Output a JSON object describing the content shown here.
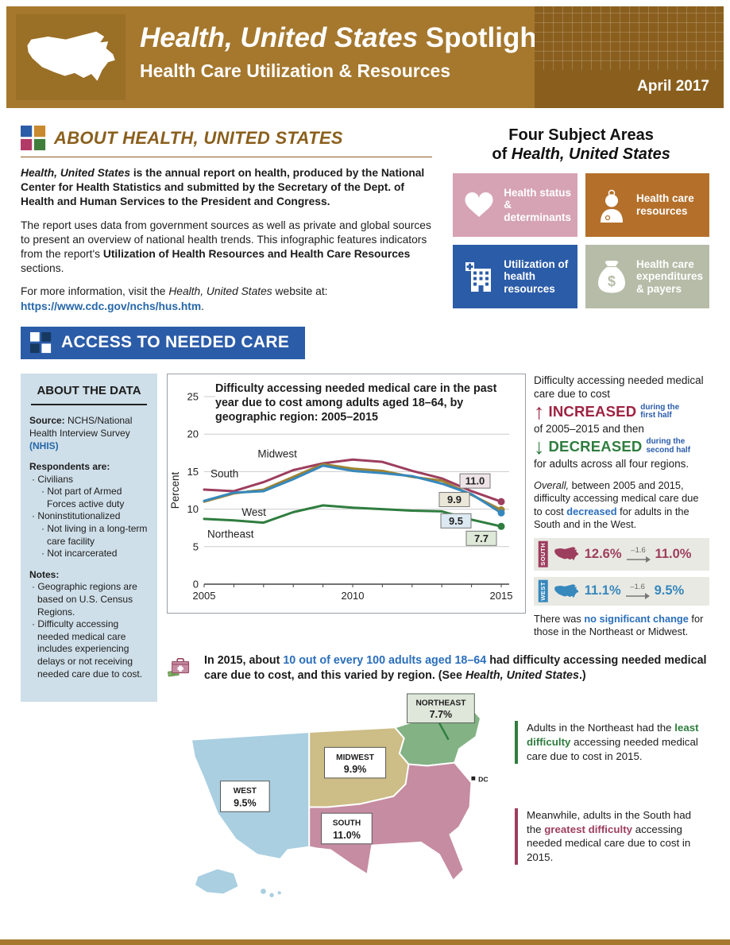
{
  "header": {
    "title_italic": "Health, United States",
    "title_suffix": " Spotlight",
    "subtitle": "Health Care Utilization & Resources",
    "date": "April 2017"
  },
  "about": {
    "heading_word": "ABOUT ",
    "heading_title": "HEALTH, UNITED STATES",
    "p1_italic": "Health, United States",
    "p1_rest": " is the annual report on health, produced by the National Center for Health Statistics and submitted by the Secretary of the Dept. of Health and Human Services to the President and Congress.",
    "p2_a": "The report uses data from government sources as well as private and global sources to present an overview of national health trends. This infographic features indicators from the report's ",
    "p2_b": "Utilization of Health Resources and Health Care Resources",
    "p2_c": " sections.",
    "p3_a": "For more information, visit the ",
    "p3_b": "Health, United States",
    "p3_c": " website at:",
    "link": "https://www.cdc.gov/nchs/hus.htm",
    "link_suffix": "."
  },
  "subjects": {
    "heading_line1": "Four Subject Areas",
    "heading_line2_prefix": "of ",
    "heading_line2_italic": "Health, United States",
    "tiles": [
      {
        "label": "Health status & determinants",
        "icon": "heart-icon",
        "color": "#d6a3b4"
      },
      {
        "label": "Health care resources",
        "icon": "doctor-icon",
        "color": "#b4702a"
      },
      {
        "label": "Utilization of health resources",
        "icon": "hospital-icon",
        "color": "#2b5ca8"
      },
      {
        "label": "Health care expenditures & payers",
        "icon": "money-bag-icon",
        "color": "#b7bca8"
      }
    ]
  },
  "section": {
    "banner": "ACCESS TO NEEDED CARE"
  },
  "sidebar": {
    "title": "ABOUT THE DATA",
    "source_label": "Source:",
    "source_text": " NCHS/National Health Interview Survey ",
    "source_link": "(NHIS)",
    "respondents_heading": "Respondents are:",
    "respondents": [
      {
        "text": "Civilians",
        "level": 1
      },
      {
        "text": "Not part of Armed Forces active duty",
        "level": 2
      },
      {
        "text": "Noninstitutionalized",
        "level": 1
      },
      {
        "text": "Not living in a long-term care facility",
        "level": 2
      },
      {
        "text": "Not incarcerated",
        "level": 2
      }
    ],
    "notes_heading": "Notes:",
    "notes": [
      "Geographic regions are based on U.S. Census Regions.",
      "Difficulty accessing needed medical care includes experiencing delays or not receiving needed care due to cost."
    ]
  },
  "chart_data": {
    "type": "line",
    "title": "Difficulty accessing needed medical care in the past year due to cost among adults aged 18–64, by geographic region: 2005–2015",
    "ylabel": "Percent",
    "ylim": [
      0,
      25
    ],
    "yticks": [
      0,
      5,
      10,
      15,
      20,
      25
    ],
    "x": [
      2005,
      2006,
      2007,
      2008,
      2009,
      2010,
      2011,
      2012,
      2013,
      2014,
      2015
    ],
    "xtick_labels": [
      2005,
      2010,
      2015
    ],
    "grid": true,
    "series": [
      {
        "name": "South",
        "color": "#9d3e5e",
        "end_label": "11.0",
        "values": [
          12.6,
          12.4,
          13.6,
          15.2,
          16.1,
          16.6,
          16.3,
          15.1,
          14.1,
          12.4,
          11.0
        ]
      },
      {
        "name": "Midwest",
        "color": "#a18230",
        "end_label": "9.9",
        "values": [
          11.0,
          12.1,
          12.6,
          14.3,
          16.0,
          15.4,
          15.1,
          14.3,
          13.8,
          11.9,
          9.9
        ]
      },
      {
        "name": "West",
        "color": "#3688bd",
        "end_label": "9.5",
        "values": [
          11.1,
          12.2,
          12.4,
          14.0,
          15.8,
          15.1,
          14.8,
          14.4,
          13.4,
          12.0,
          9.5
        ]
      },
      {
        "name": "Northeast",
        "color": "#2f7d3f",
        "end_label": "7.7",
        "values": [
          8.7,
          8.5,
          8.2,
          9.6,
          10.5,
          10.2,
          10.0,
          9.8,
          9.7,
          8.6,
          7.7
        ]
      }
    ]
  },
  "findings": {
    "intro": "Difficulty accessing needed medical care due to cost",
    "increased_word": "INCREASED",
    "increased_note_1": "during the",
    "increased_note_2": "first half",
    "middle": "of 2005–2015 and then",
    "decreased_word": "DECREASED",
    "decreased_note_1": "during the",
    "decreased_note_2": "second half",
    "outro": "for adults across all four regions.",
    "overall_italic": "Overall,",
    "overall_a": " between 2005 and 2015, difficulty accessing medical care due to cost ",
    "overall_b": "decreased",
    "overall_c": " for adults in the South and in the West.",
    "stats": [
      {
        "region": "SOUTH",
        "from": "12.6%",
        "change": "–1.6",
        "to": "11.0%",
        "color": "#9d3e5e"
      },
      {
        "region": "WEST",
        "from": "11.1%",
        "change": "–1.6",
        "to": "9.5%",
        "color": "#3688bd"
      }
    ],
    "nochange_a": "There was ",
    "nochange_b": "no significant change",
    "nochange_c": " for those in the Northeast or Midwest."
  },
  "callout": {
    "a": "In 2015, about ",
    "b": "10 out of every 100 adults aged 18–64",
    "c": " had difficulty accessing needed medical care due to cost, and this varied by region. (See ",
    "d": "Health, United States",
    "e": ".)"
  },
  "map": {
    "regions": [
      {
        "name": "WEST",
        "value": "9.5%"
      },
      {
        "name": "MIDWEST",
        "value": "9.9%"
      },
      {
        "name": "NORTHEAST",
        "value": "7.7%"
      },
      {
        "name": "SOUTH",
        "value": "11.0%"
      }
    ],
    "dc_label": "DC",
    "note1_a": "Adults in the Northeast had the ",
    "note1_b": "least difficulty",
    "note1_c": " accessing needed medical care due to cost in 2015.",
    "note2_a": "Meanwhile, adults in the South had the ",
    "note2_b": "greatest difficulty",
    "note2_c": " accessing needed medical care due to cost in 2015."
  },
  "colors": {
    "header_tan": "#a5782e",
    "header_dark": "#8a5f1e",
    "heading_brown": "#8a5f1d",
    "banner_blue": "#2b5ca8",
    "link_blue": "#2667a9",
    "sidebar_bg": "#cfdfe9",
    "south": "#9d3e5e",
    "midwest": "#a18230",
    "west": "#3688bd",
    "northeast": "#2f7d3f",
    "map_west": "#a9cfe1",
    "map_midwest": "#cdbd86",
    "map_northeast": "#83b285",
    "map_south": "#c68ca1",
    "increase_red": "#9e2241",
    "decrease_green": "#2f7d3f"
  }
}
